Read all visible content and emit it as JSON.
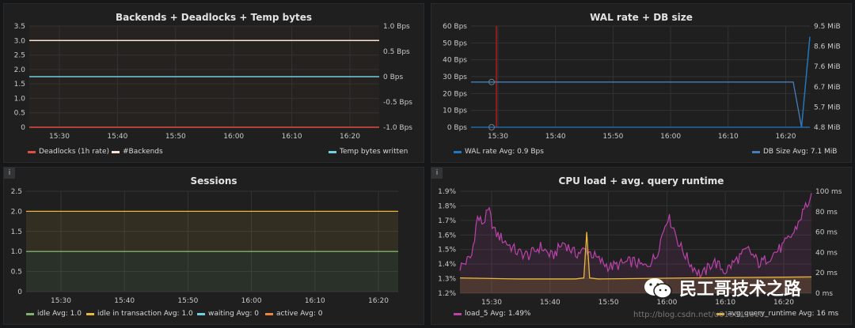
{
  "panels": {
    "backends": {
      "title": "Backends + Deadlocks + Temp bytes",
      "legend": [
        {
          "label": "Deadlocks (1h rate)",
          "color": "#e24d42"
        },
        {
          "label": "#Backends",
          "color": "#f9e2d2"
        },
        {
          "label": "Temp bytes written",
          "color": "#6ed0e0"
        }
      ]
    },
    "wal": {
      "title": "WAL rate + DB size",
      "legend": [
        {
          "label": "WAL rate  Avg: 0.9 Bps",
          "color": "#1f78c1"
        },
        {
          "label": "DB Size  Avg: 7.1 MiB",
          "color": "#447ebc"
        }
      ]
    },
    "sessions": {
      "title": "Sessions",
      "info": "i",
      "legend": [
        {
          "label": "idle  Avg: 1.0",
          "color": "#7eb26d"
        },
        {
          "label": "idle in transaction  Avg: 1.0",
          "color": "#eab839"
        },
        {
          "label": "waiting  Avg: 0",
          "color": "#6ed0e0"
        },
        {
          "label": "active  Avg: 0",
          "color": "#ef843c"
        }
      ]
    },
    "cpu": {
      "title": "CPU load + avg. query runtime",
      "info": "i",
      "legend": [
        {
          "label": "load_5  Avg: 1.49%",
          "color": "#ba43a9"
        },
        {
          "label": "avg_query_runtime  Avg: 16 ms",
          "color": "#eab839"
        }
      ]
    }
  },
  "watermark": {
    "text": "民工哥技术之路",
    "url": "http://blog.csdn.net/u013043610"
  },
  "chart_data": [
    {
      "type": "line",
      "title": "Backends + Deadlocks + Temp bytes",
      "x_ticks": [
        "15:30",
        "15:40",
        "15:50",
        "16:00",
        "16:10",
        "16:20"
      ],
      "y_left_ticks": [
        "0",
        "0.5",
        "1.0",
        "1.5",
        "2.0",
        "2.5",
        "3.0",
        "3.5"
      ],
      "y_right_ticks": [
        "-1.0 Bps",
        "-0.5 Bps",
        "0 Bps",
        "0.5 Bps",
        "1.0 Bps"
      ],
      "ylim_left": [
        0,
        3.5
      ],
      "ylim_right": [
        -1.0,
        1.0
      ],
      "series": [
        {
          "name": "Deadlocks (1h rate)",
          "axis": "left",
          "values": [
            0,
            0
          ]
        },
        {
          "name": "#Backends",
          "axis": "left",
          "values": [
            3,
            3
          ]
        },
        {
          "name": "Temp bytes written",
          "axis": "right",
          "values": [
            0,
            0
          ]
        }
      ]
    },
    {
      "type": "line",
      "title": "WAL rate + DB size",
      "x_ticks": [
        "15:30",
        "15:40",
        "15:50",
        "16:00",
        "16:10",
        "16:20"
      ],
      "y_left_ticks": [
        "0 Bps",
        "10 Bps",
        "20 Bps",
        "30 Bps",
        "40 Bps",
        "50 Bps",
        "60 Bps"
      ],
      "y_right_ticks": [
        "4.8 MiB",
        "5.7 MiB",
        "6.7 MiB",
        "7.6 MiB",
        "8.6 MiB",
        "9.5 MiB"
      ],
      "ylim_left": [
        0,
        60
      ],
      "ylim_right": [
        4.8,
        9.5
      ],
      "series": [
        {
          "name": "WAL rate",
          "axis": "left",
          "x_minutes": [
            0,
            27,
            58,
            59,
            61
          ],
          "values": [
            0,
            0,
            0,
            0,
            0
          ]
        },
        {
          "name": "DB Size",
          "axis": "right",
          "x_minutes": [
            0,
            58,
            59.5,
            61
          ],
          "values": [
            6.9,
            6.9,
            4.8,
            9.0
          ]
        }
      ]
    },
    {
      "type": "area",
      "title": "Sessions",
      "x_ticks": [
        "15:30",
        "15:40",
        "15:50",
        "16:00",
        "16:10",
        "16:20"
      ],
      "y_ticks": [
        "0",
        "0.5",
        "1.0",
        "1.5",
        "2.0",
        "2.5"
      ],
      "ylim": [
        0,
        2.5
      ],
      "stacked": true,
      "series": [
        {
          "name": "idle",
          "values": [
            1.0,
            1.0
          ]
        },
        {
          "name": "idle in transaction",
          "values": [
            1.0,
            1.0
          ]
        },
        {
          "name": "waiting",
          "values": [
            0,
            0
          ]
        },
        {
          "name": "active",
          "values": [
            0,
            0
          ]
        }
      ]
    },
    {
      "type": "line",
      "title": "CPU load + avg. query runtime",
      "x_ticks": [
        "15:30",
        "15:40",
        "15:50",
        "16:00",
        "16:10",
        "16:20"
      ],
      "y_left_ticks": [
        "1.2%",
        "1.3%",
        "1.4%",
        "1.5%",
        "1.6%",
        "1.7%",
        "1.8%",
        "1.9%"
      ],
      "y_right_ticks": [
        "0 ms",
        "20 ms",
        "40 ms",
        "60 ms",
        "80 ms",
        "100 ms"
      ],
      "ylim_left": [
        1.2,
        1.9
      ],
      "ylim_right": [
        0,
        100
      ],
      "series": [
        {
          "name": "load_5",
          "axis": "left",
          "x_minutes": [
            0,
            2,
            3,
            4,
            5,
            6,
            8,
            10,
            12,
            14,
            16,
            18,
            20,
            22,
            24,
            26,
            28,
            30,
            32,
            34,
            36,
            37,
            38,
            40,
            42,
            44,
            46,
            48,
            50,
            52,
            54,
            56,
            58,
            60,
            61
          ],
          "values": [
            1.38,
            1.45,
            1.72,
            1.68,
            1.77,
            1.62,
            1.55,
            1.48,
            1.46,
            1.52,
            1.45,
            1.55,
            1.47,
            1.5,
            1.43,
            1.38,
            1.4,
            1.42,
            1.38,
            1.45,
            1.73,
            1.66,
            1.54,
            1.4,
            1.32,
            1.42,
            1.35,
            1.43,
            1.5,
            1.4,
            1.46,
            1.52,
            1.62,
            1.8,
            1.85
          ]
        },
        {
          "name": "avg_query_runtime",
          "axis": "right",
          "x_minutes": [
            0,
            10,
            20,
            21.5,
            22,
            22.5,
            24,
            40,
            61
          ],
          "values": [
            15,
            14,
            14,
            15,
            60,
            15,
            14,
            15,
            16
          ]
        }
      ]
    }
  ]
}
